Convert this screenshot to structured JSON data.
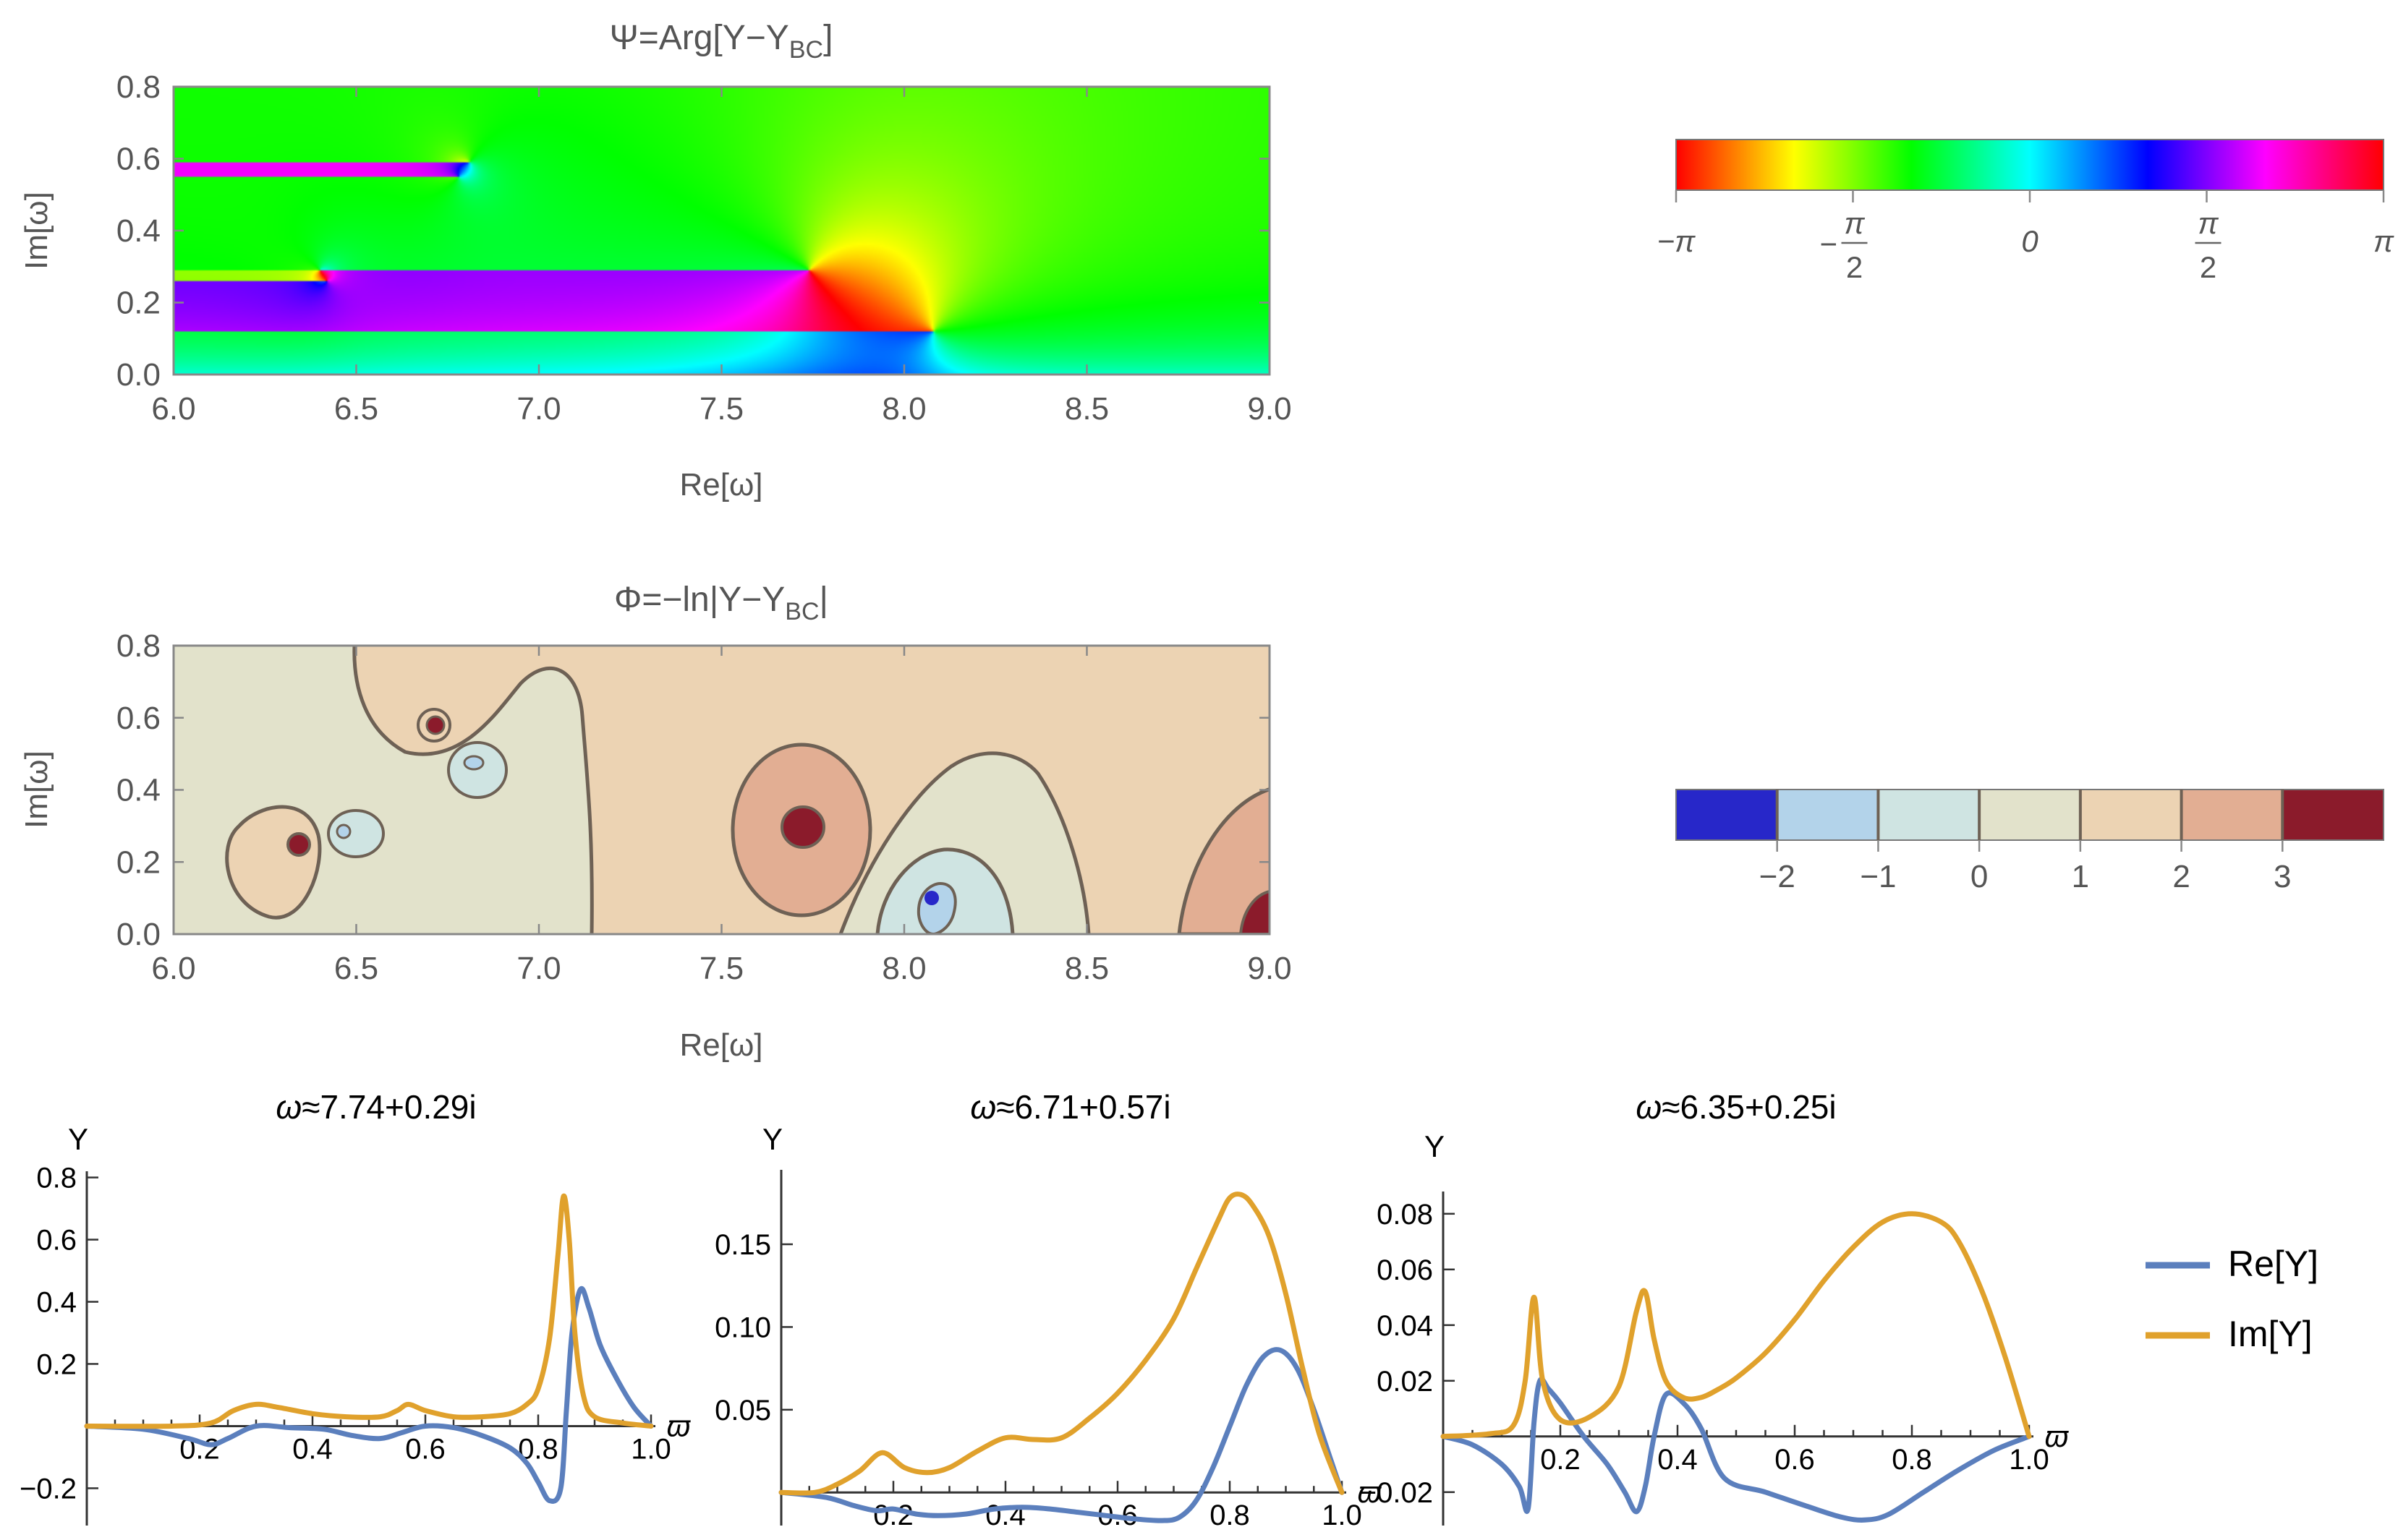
{
  "chart_data": [
    {
      "type": "heatmap",
      "name": "phase-plot",
      "title": "Ψ=Arg[Y−Y_BC]",
      "title_main": "Ψ=Arg[Y−Y",
      "title_sub": "BC",
      "title_end": "]",
      "xlabel": "Re[ω]",
      "ylabel": "Im[ω]",
      "xlim": [
        6.0,
        9.0
      ],
      "ylim": [
        0.0,
        0.8
      ],
      "xticks": [
        "6.0",
        "6.5",
        "7.0",
        "7.5",
        "8.0",
        "8.5",
        "9.0"
      ],
      "yticks": [
        "0.0",
        "0.2",
        "0.4",
        "0.6",
        "0.8"
      ],
      "colorbar": {
        "ticks": [
          "−π",
          "−π/2",
          "0",
          "π/2",
          "π"
        ],
        "labels": [
          {
            "num": "−π",
            "den": ""
          },
          {
            "num": "π",
            "den": "2",
            "prefix": "−"
          },
          {
            "num": "0",
            "den": ""
          },
          {
            "num": "π",
            "den": "2",
            "prefix": ""
          },
          {
            "num": "π",
            "den": ""
          }
        ]
      },
      "zeros": [
        {
          "re": 6.42,
          "im": 0.26
        },
        {
          "re": 6.78,
          "im": 0.55
        },
        {
          "re": 7.74,
          "im": 0.29
        },
        {
          "re": 8.08,
          "im": 0.12
        }
      ]
    },
    {
      "type": "heatmap",
      "name": "contour-plot",
      "title": "Φ=−ln|Y−Y_BC|",
      "title_main": "Φ=−ln|Y−Y",
      "title_sub": "BC",
      "title_end": "|",
      "xlabel": "Re[ω]",
      "ylabel": "Im[ω]",
      "xlim": [
        6.0,
        9.0
      ],
      "ylim": [
        0.0,
        0.8
      ],
      "xticks": [
        "6.0",
        "6.5",
        "7.0",
        "7.5",
        "8.0",
        "8.5",
        "9.0"
      ],
      "yticks": [
        "0.0",
        "0.2",
        "0.4",
        "0.6",
        "0.8"
      ],
      "colorbar": {
        "levels": [
          -2,
          -1,
          0,
          1,
          2,
          3
        ],
        "ticks": [
          "−2",
          "−1",
          "0",
          "1",
          "2",
          "3"
        ],
        "colors": [
          "#2727c9",
          "#b3d3ea",
          "#cfe4e2",
          "#e2e2cb",
          "#ecd3b3",
          "#e2ae93",
          "#8b1b2b"
        ]
      }
    },
    {
      "type": "line",
      "name": "mode-1",
      "title": "ω≈7.74+0.29i",
      "xlabel": "ϖ",
      "ylabel": "Y",
      "xlim": [
        0.0,
        1.0
      ],
      "ylim": [
        -0.32,
        0.82
      ],
      "xticks": [
        "0.2",
        "0.4",
        "0.6",
        "0.8",
        "1.0"
      ],
      "yticks": [
        "−0.2",
        "0.2",
        "0.4",
        "0.6",
        "0.8"
      ],
      "series": [
        {
          "name": "Re[Y]",
          "color": "#5b7fbd",
          "x": [
            0,
            0.1,
            0.18,
            0.22,
            0.25,
            0.3,
            0.36,
            0.42,
            0.47,
            0.52,
            0.56,
            0.6,
            0.65,
            0.7,
            0.75,
            0.78,
            0.8,
            0.82,
            0.84,
            0.85,
            0.86,
            0.875,
            0.89,
            0.91,
            0.94,
            0.97,
            1.0
          ],
          "y": [
            0,
            -0.01,
            -0.04,
            -0.06,
            -0.04,
            0.0,
            -0.005,
            -0.01,
            -0.03,
            -0.04,
            -0.02,
            0.0,
            -0.005,
            -0.03,
            -0.07,
            -0.12,
            -0.18,
            -0.24,
            -0.2,
            0.05,
            0.3,
            0.44,
            0.38,
            0.26,
            0.15,
            0.06,
            0.0
          ]
        },
        {
          "name": "Im[Y]",
          "color": "#e0a12c",
          "x": [
            0,
            0.15,
            0.22,
            0.26,
            0.3,
            0.34,
            0.4,
            0.46,
            0.52,
            0.55,
            0.57,
            0.6,
            0.65,
            0.7,
            0.75,
            0.78,
            0.8,
            0.82,
            0.835,
            0.845,
            0.855,
            0.865,
            0.88,
            0.9,
            0.95,
            1.0
          ],
          "y": [
            0,
            0.0,
            0.01,
            0.05,
            0.07,
            0.06,
            0.04,
            0.03,
            0.03,
            0.05,
            0.07,
            0.05,
            0.03,
            0.03,
            0.04,
            0.07,
            0.12,
            0.28,
            0.55,
            0.74,
            0.6,
            0.3,
            0.1,
            0.03,
            0.01,
            0.0
          ]
        }
      ]
    },
    {
      "type": "line",
      "name": "mode-2",
      "title": "ω≈6.71+0.57i",
      "xlabel": "ϖ",
      "ylabel": "Y",
      "xlim": [
        0.0,
        1.0
      ],
      "ylim": [
        -0.02,
        0.195
      ],
      "xticks": [
        "0.2",
        "0.4",
        "0.6",
        "0.8",
        "1.0"
      ],
      "yticks": [
        "0.05",
        "0.10",
        "0.15"
      ],
      "series": [
        {
          "name": "Re[Y]",
          "color": "#5b7fbd",
          "x": [
            0,
            0.08,
            0.13,
            0.17,
            0.2,
            0.24,
            0.28,
            0.33,
            0.38,
            0.43,
            0.48,
            0.53,
            0.58,
            0.63,
            0.68,
            0.71,
            0.74,
            0.77,
            0.8,
            0.83,
            0.86,
            0.89,
            0.92,
            0.95,
            0.98,
            1.0
          ],
          "y": [
            0,
            -0.003,
            -0.008,
            -0.011,
            -0.01,
            -0.013,
            -0.014,
            -0.013,
            -0.01,
            -0.009,
            -0.01,
            -0.012,
            -0.014,
            -0.016,
            -0.017,
            -0.015,
            -0.005,
            0.015,
            0.04,
            0.065,
            0.082,
            0.086,
            0.075,
            0.05,
            0.02,
            0.0
          ]
        },
        {
          "name": "Im[Y]",
          "color": "#e0a12c",
          "x": [
            0,
            0.06,
            0.1,
            0.14,
            0.18,
            0.22,
            0.26,
            0.3,
            0.35,
            0.4,
            0.45,
            0.5,
            0.55,
            0.6,
            0.65,
            0.7,
            0.74,
            0.78,
            0.8,
            0.82,
            0.84,
            0.87,
            0.9,
            0.93,
            0.96,
            1.0
          ],
          "y": [
            0,
            0.0,
            0.005,
            0.013,
            0.024,
            0.015,
            0.012,
            0.015,
            0.025,
            0.033,
            0.032,
            0.033,
            0.045,
            0.06,
            0.08,
            0.105,
            0.135,
            0.165,
            0.178,
            0.18,
            0.174,
            0.155,
            0.12,
            0.075,
            0.035,
            0.0
          ]
        }
      ]
    },
    {
      "type": "line",
      "name": "mode-3",
      "title": "ω≈6.35+0.25i",
      "xlabel": "ϖ",
      "ylabel": "Y",
      "xlim": [
        0.0,
        1.0
      ],
      "ylim": [
        -0.032,
        0.088
      ],
      "xticks": [
        "0.2",
        "0.4",
        "0.6",
        "0.8",
        "1.0"
      ],
      "yticks": [
        "−0.02",
        "0.02",
        "0.04",
        "0.06",
        "0.08"
      ],
      "series": [
        {
          "name": "Re[Y]",
          "color": "#5b7fbd",
          "x": [
            0,
            0.05,
            0.1,
            0.13,
            0.145,
            0.155,
            0.165,
            0.18,
            0.2,
            0.24,
            0.28,
            0.31,
            0.33,
            0.345,
            0.36,
            0.38,
            0.41,
            0.44,
            0.48,
            0.55,
            0.62,
            0.68,
            0.72,
            0.76,
            0.82,
            0.88,
            0.94,
            1.0
          ],
          "y": [
            0,
            -0.003,
            -0.01,
            -0.018,
            -0.026,
            0.005,
            0.02,
            0.017,
            0.012,
            0.0,
            -0.01,
            -0.02,
            -0.027,
            -0.018,
            0.0,
            0.015,
            0.012,
            0.003,
            -0.015,
            -0.02,
            -0.025,
            -0.029,
            -0.03,
            -0.028,
            -0.02,
            -0.012,
            -0.005,
            0.0
          ]
        },
        {
          "name": "Im[Y]",
          "color": "#e0a12c",
          "x": [
            0,
            0.08,
            0.12,
            0.14,
            0.155,
            0.17,
            0.2,
            0.25,
            0.3,
            0.33,
            0.345,
            0.36,
            0.38,
            0.41,
            0.44,
            0.47,
            0.5,
            0.55,
            0.6,
            0.65,
            0.7,
            0.75,
            0.8,
            0.85,
            0.88,
            0.92,
            0.96,
            1.0
          ],
          "y": [
            0,
            0.001,
            0.004,
            0.02,
            0.05,
            0.02,
            0.006,
            0.007,
            0.018,
            0.045,
            0.052,
            0.035,
            0.02,
            0.014,
            0.014,
            0.017,
            0.021,
            0.03,
            0.042,
            0.056,
            0.068,
            0.077,
            0.08,
            0.077,
            0.07,
            0.052,
            0.028,
            0.0
          ]
        }
      ]
    }
  ],
  "legend": [
    {
      "label": "Re[Y]",
      "color": "#5b7fbd"
    },
    {
      "label": "Im[Y]",
      "color": "#e0a12c"
    }
  ]
}
